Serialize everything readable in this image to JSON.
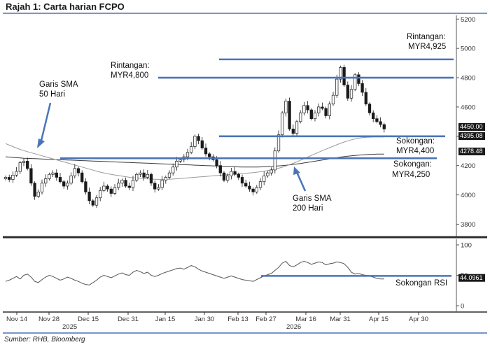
{
  "title": "Rajah 1: Carta harian FCPO",
  "source": "Sumber: RHB, Bloomberg",
  "colors": {
    "accent_line": "#4a74b8",
    "candle_up": "#ffffff",
    "candle_down": "#1a1a1a",
    "sma50": "#9a9a9a",
    "sma200": "#3a3a3a",
    "rsi": "#555555",
    "tag_bg": "#1a1a1a"
  },
  "chart_data": [
    {
      "type": "candlestick",
      "title": "",
      "y_ticks": [
        3800,
        4000,
        4200,
        4400,
        4600,
        4800,
        5000,
        5200
      ],
      "ylim": [
        3720,
        5230
      ],
      "x_ticks": [
        "Nov 14",
        "Nov 28",
        "Dec 15",
        "Dec 31",
        "Jan 15",
        "Jan 30",
        "Feb 13",
        "Feb 27",
        "Mar 16",
        "Mar 31",
        "Apr 15",
        "Apr 30"
      ],
      "x_years": [
        "2025",
        "2026"
      ],
      "last_price_labels": [
        "4450.00",
        "4395.08",
        "4278.48"
      ],
      "closes": [
        4120,
        4105,
        4135,
        4160,
        4220,
        4230,
        4180,
        4080,
        3990,
        4020,
        4080,
        4110,
        4140,
        4150,
        4120,
        4090,
        4060,
        4080,
        4130,
        4180,
        4150,
        4090,
        4020,
        3960,
        3930,
        3980,
        4030,
        4060,
        4040,
        4010,
        4050,
        4080,
        4100,
        4060,
        4050,
        4100,
        4140,
        4150,
        4120,
        4140,
        4080,
        4040,
        4050,
        4100,
        4120,
        4150,
        4190,
        4230,
        4240,
        4260,
        4290,
        4330,
        4400,
        4370,
        4320,
        4280,
        4260,
        4240,
        4200,
        4150,
        4100,
        4130,
        4160,
        4140,
        4120,
        4080,
        4060,
        4040,
        4020,
        4050,
        4090,
        4130,
        4150,
        4170,
        4300,
        4410,
        4560,
        4640,
        4450,
        4420,
        4500,
        4560,
        4610,
        4580,
        4520,
        4560,
        4600,
        4590,
        4540,
        4620,
        4680,
        4790,
        4870,
        4750,
        4660,
        4720,
        4820,
        4760,
        4700,
        4620,
        4560,
        4520,
        4500,
        4480,
        4450
      ],
      "sma50": [
        4350,
        4340,
        4330,
        4320,
        4310,
        4302,
        4295,
        4288,
        4281,
        4274,
        4267,
        4260,
        4253,
        4246,
        4239,
        4232,
        4225,
        4218,
        4211,
        4204,
        4197,
        4190,
        4183,
        4176,
        4169,
        4162,
        4155,
        4150,
        4145,
        4140,
        4136,
        4132,
        4128,
        4124,
        4120,
        4117,
        4115,
        4113,
        4111,
        4109,
        4108,
        4107,
        4106,
        4106,
        4106,
        4107,
        4108,
        4110,
        4112,
        4114,
        4116,
        4118,
        4120,
        4122,
        4124,
        4126,
        4128,
        4130,
        4132,
        4134,
        4136,
        4138,
        4140,
        4142,
        4144,
        4146,
        4148,
        4150,
        4152,
        4155,
        4158,
        4162,
        4166,
        4171,
        4176,
        4182,
        4189,
        4197,
        4206,
        4215,
        4225,
        4236,
        4247,
        4258,
        4269,
        4280,
        4291,
        4302,
        4312,
        4322,
        4332,
        4342,
        4352,
        4361,
        4369,
        4376,
        4382,
        4387,
        4391,
        4393,
        4394,
        4395,
        4395,
        4395,
        4395
      ],
      "sma200": [
        4260,
        4258,
        4256,
        4254,
        4252,
        4250,
        4249,
        4248,
        4247,
        4246,
        4245,
        4244,
        4243,
        4242,
        4241,
        4240,
        4239,
        4238,
        4237,
        4236,
        4235,
        4234,
        4233,
        4232,
        4231,
        4230,
        4229,
        4228,
        4227,
        4226,
        4225,
        4224,
        4223,
        4222,
        4221,
        4220,
        4219,
        4218,
        4217,
        4216,
        4215,
        4214,
        4213,
        4212,
        4211,
        4210,
        4209,
        4208,
        4207,
        4206,
        4205,
        4204,
        4203,
        4202,
        4201,
        4200,
        4199,
        4198,
        4197,
        4196,
        4195,
        4194,
        4193,
        4192,
        4191,
        4190,
        4190,
        4190,
        4190,
        4190,
        4191,
        4192,
        4193,
        4194,
        4196,
        4198,
        4200,
        4202,
        4205,
        4208,
        4211,
        4214,
        4218,
        4222,
        4226,
        4230,
        4234,
        4238,
        4242,
        4246,
        4250,
        4254,
        4258,
        4261,
        4264,
        4267,
        4269,
        4271,
        4273,
        4275,
        4276,
        4277,
        4278,
        4278,
        4278
      ],
      "levels": [
        {
          "kind": "Rintangan",
          "value": 4925,
          "label_a": "Rintangan:",
          "label_b": "MYR4,925"
        },
        {
          "kind": "Rintangan",
          "value": 4800,
          "label_a": "Rintangan:",
          "label_b": "MYR4,800"
        },
        {
          "kind": "Sokongan",
          "value": 4400,
          "label_a": "Sokongan:",
          "label_b": "MYR4,400"
        },
        {
          "kind": "Sokongan",
          "value": 4250,
          "label_a": "Sokongan:",
          "label_b": "MYR4,250"
        }
      ],
      "annotations": [
        {
          "line1": "Garis SMA",
          "line2": "50 Hari"
        },
        {
          "line1": "Garis SMA",
          "line2": "200 Hari"
        }
      ]
    },
    {
      "type": "line",
      "title": "",
      "y_ticks": [
        0,
        50,
        100
      ],
      "ylim": [
        -5,
        105
      ],
      "last_value_label": "44.0961",
      "support_level": 49,
      "support_label": "Sokongan RSI",
      "rsi": [
        40,
        42,
        45,
        48,
        44,
        50,
        52,
        47,
        40,
        38,
        43,
        47,
        50,
        48,
        45,
        42,
        44,
        47,
        45,
        42,
        40,
        37,
        35,
        34,
        38,
        42,
        47,
        50,
        48,
        46,
        49,
        52,
        54,
        51,
        50,
        55,
        58,
        56,
        53,
        55,
        50,
        48,
        50,
        53,
        55,
        57,
        59,
        61,
        62,
        60,
        63,
        66,
        64,
        60,
        57,
        55,
        53,
        51,
        49,
        47,
        45,
        47,
        49,
        47,
        45,
        43,
        42,
        41,
        40,
        43,
        46,
        49,
        51,
        53,
        58,
        63,
        70,
        73,
        66,
        64,
        67,
        71,
        73,
        71,
        68,
        70,
        72,
        71,
        67,
        69,
        70,
        72,
        71,
        69,
        63,
        55,
        52,
        53,
        51,
        50,
        49,
        47,
        45,
        44,
        44
      ]
    }
  ]
}
